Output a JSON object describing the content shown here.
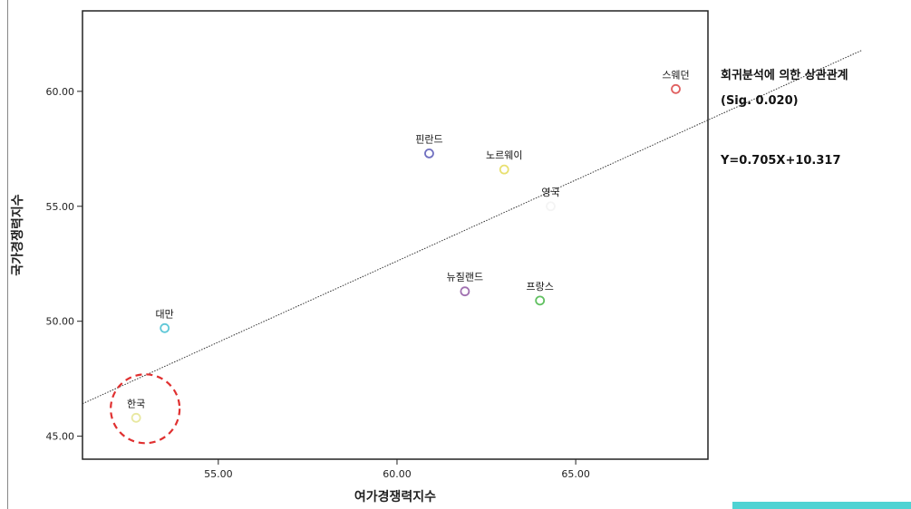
{
  "chart_data": {
    "type": "scatter",
    "xlabel": "여가경쟁력지수",
    "ylabel": "국가경쟁력지수",
    "xlim": [
      51.2,
      68.7
    ],
    "ylim": [
      44.0,
      63.5
    ],
    "x_ticks": [
      "55.00",
      "60.00",
      "65.00"
    ],
    "x_tick_values": [
      55,
      60,
      65
    ],
    "y_ticks": [
      "45.00",
      "50.00",
      "55.00",
      "60.00"
    ],
    "y_tick_values": [
      45,
      50,
      55,
      60
    ],
    "grid": false,
    "points": [
      {
        "name": "스웨던",
        "x": 67.8,
        "y": 60.1,
        "color": "#e06060"
      },
      {
        "name": "핀란드",
        "x": 60.9,
        "y": 57.3,
        "color": "#7070c0"
      },
      {
        "name": "노르웨이",
        "x": 63.0,
        "y": 56.6,
        "color": "#e8e070"
      },
      {
        "name": "영국",
        "x": 64.3,
        "y": 55.0,
        "color": "#f4f4f4"
      },
      {
        "name": "뉴질랜드",
        "x": 61.9,
        "y": 51.3,
        "color": "#a070b0"
      },
      {
        "name": "프랑스",
        "x": 64.0,
        "y": 50.9,
        "color": "#60c060"
      },
      {
        "name": "대만",
        "x": 53.5,
        "y": 49.7,
        "color": "#60c8d8"
      },
      {
        "name": "한국",
        "x": 52.7,
        "y": 45.8,
        "color": "#e8e8a0"
      }
    ],
    "regression": {
      "slope": 0.705,
      "intercept": 10.317
    },
    "highlight": {
      "point": "한국",
      "color": "#e03030"
    },
    "annotations": {
      "title": "회귀분석에 의한 상관관계",
      "sig": "(Sig. 0.020)",
      "equation": "Y=0.705X+10.317"
    }
  }
}
